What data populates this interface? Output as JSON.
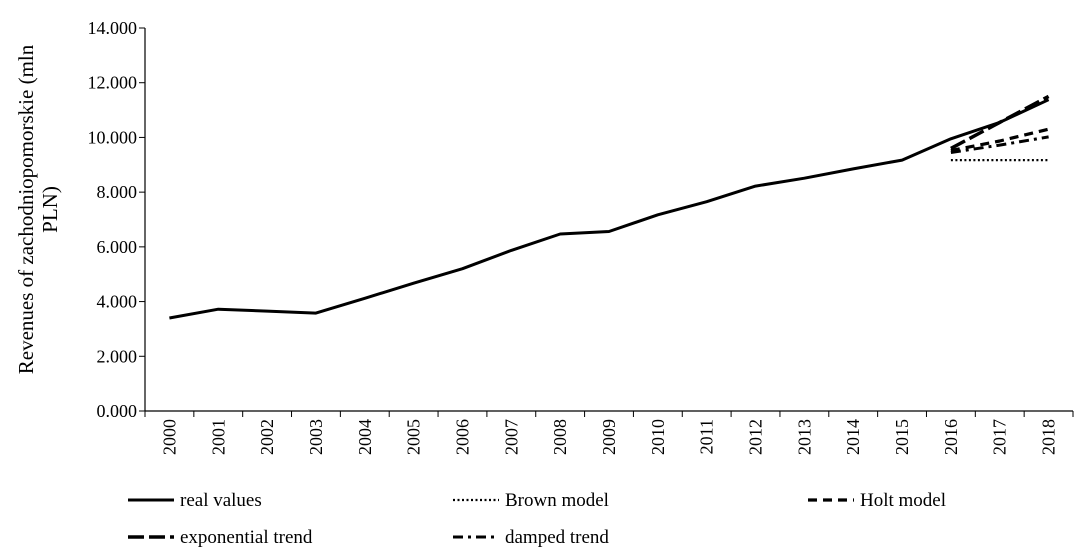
{
  "chart_data": {
    "type": "line",
    "ylabel": "Revenues of zachodniopomorskie (mln PLN)",
    "ylabel_lines": [
      "Revenues of zachodniopomorskie (mln",
      "PLN)"
    ],
    "xlabel": "",
    "ylim": [
      0,
      14
    ],
    "yticks": [
      "0.000",
      "2.000",
      "4.000",
      "6.000",
      "8.000",
      "10.000",
      "12.000",
      "14.000"
    ],
    "categories": [
      "2000",
      "2001",
      "2002",
      "2003",
      "2004",
      "2005",
      "2006",
      "2007",
      "2008",
      "2009",
      "2010",
      "2011",
      "2012",
      "2013",
      "2014",
      "2015",
      "2016",
      "2017",
      "2018"
    ],
    "grid": false,
    "legend_position": "bottom",
    "series": [
      {
        "name": "real values",
        "style": "solid",
        "x": [
          "2000",
          "2001",
          "2002",
          "2003",
          "2004",
          "2005",
          "2006",
          "2007",
          "2008",
          "2009",
          "2010",
          "2011",
          "2012",
          "2013",
          "2014",
          "2015",
          "2016",
          "2017",
          "2018"
        ],
        "values": [
          3.4,
          3.72,
          3.65,
          3.58,
          4.12,
          4.67,
          5.2,
          5.87,
          6.47,
          6.56,
          7.17,
          7.65,
          8.22,
          8.51,
          8.85,
          9.17,
          9.95,
          10.55,
          11.38
        ]
      },
      {
        "name": "Brown model",
        "style": "dotted",
        "x": [
          "2016",
          "2017",
          "2018"
        ],
        "values": [
          9.17,
          9.17,
          9.17
        ]
      },
      {
        "name": "Holt model",
        "style": "dashed",
        "x": [
          "2016",
          "2017",
          "2018"
        ],
        "values": [
          9.52,
          9.87,
          10.3
        ]
      },
      {
        "name": "exponential trend",
        "style": "longdash",
        "x": [
          "2016",
          "2017",
          "2018"
        ],
        "values": [
          9.6,
          10.55,
          11.5
        ]
      },
      {
        "name": "damped trend",
        "style": "dashdot",
        "x": [
          "2016",
          "2017",
          "2018"
        ],
        "values": [
          9.45,
          9.72,
          10.02
        ]
      }
    ]
  }
}
